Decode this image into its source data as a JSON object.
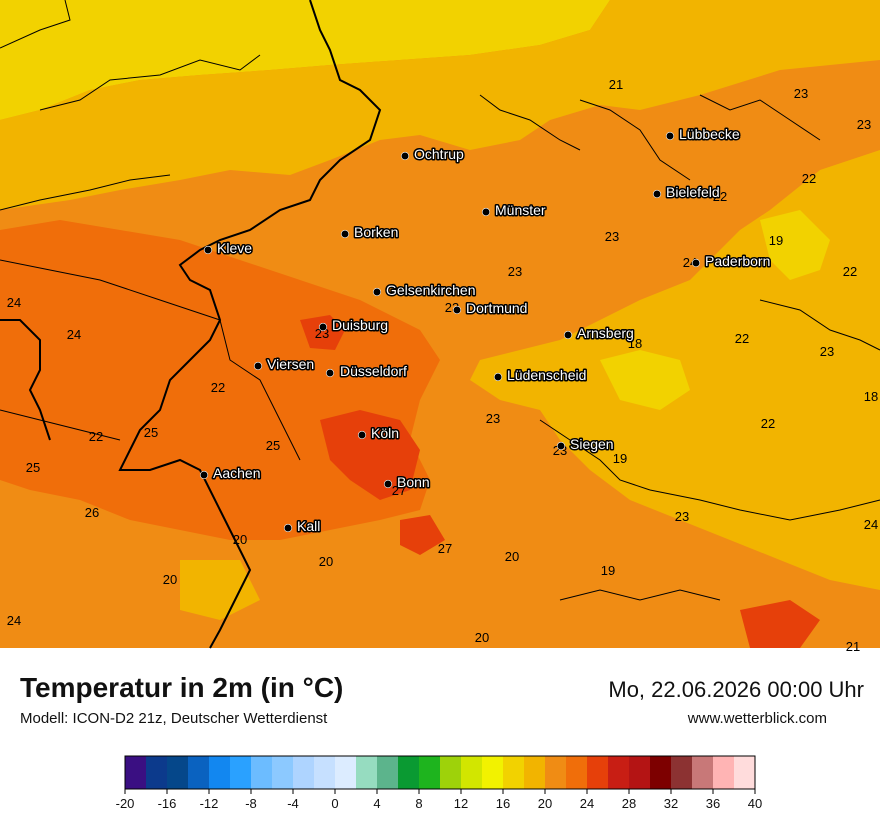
{
  "title": "Temperatur in 2m (in °C)",
  "model": "Modell: ICON-D2 21z, Deutscher Wetterdienst",
  "datetime": "Mo, 22.06.2026 00:00 Uhr",
  "website": "www.wetterblick.com",
  "cities": [
    {
      "name": "Lübbecke"
    },
    {
      "name": "Ochtrup"
    },
    {
      "name": "Bielefeld"
    },
    {
      "name": "Münster"
    },
    {
      "name": "Borken"
    },
    {
      "name": "Kleve"
    },
    {
      "name": "Paderborn"
    },
    {
      "name": "Gelsenkirchen"
    },
    {
      "name": "Dortmund"
    },
    {
      "name": "Duisburg"
    },
    {
      "name": "Arnsberg"
    },
    {
      "name": "Viersen"
    },
    {
      "name": "Düsseldorf"
    },
    {
      "name": "Lüdenscheid"
    },
    {
      "name": "Köln"
    },
    {
      "name": "Siegen"
    },
    {
      "name": "Aachen"
    },
    {
      "name": "Bonn"
    },
    {
      "name": "Kall"
    }
  ],
  "temps": [
    "21",
    "23",
    "23",
    "22",
    "22",
    "22",
    "19",
    "23",
    "24",
    "22",
    "24",
    "23",
    "18",
    "23",
    "23",
    "22",
    "23",
    "18",
    "22",
    "22",
    "23",
    "25",
    "25",
    "24",
    "25",
    "23",
    "19",
    "27",
    "26",
    "23",
    "24",
    "20",
    "27",
    "20",
    "20",
    "19",
    "20",
    "24",
    "21"
  ],
  "legend": {
    "ticks": [
      "-20",
      "-16",
      "-12",
      "-8",
      "-4",
      "0",
      "4",
      "8",
      "12",
      "16",
      "20",
      "24",
      "28",
      "32",
      "36",
      "40"
    ],
    "colors": [
      "#3a0f82",
      "#0c3a8c",
      "#05478a",
      "#0a62c0",
      "#1287f0",
      "#2aa1ff",
      "#6cbcff",
      "#8cc9ff",
      "#aed4ff",
      "#c6e0ff",
      "#dcecff",
      "#96dcc0",
      "#5cb48c",
      "#0a9a32",
      "#1eb41e",
      "#9ed20a",
      "#d2e600",
      "#f2f200",
      "#f2d200",
      "#f2b400",
      "#f08c14",
      "#f06e0a",
      "#e6400a",
      "#c81e14",
      "#b41414",
      "#7d0000",
      "#8c3232",
      "#c87878",
      "#ffb4b4",
      "#ffdcdc"
    ]
  }
}
